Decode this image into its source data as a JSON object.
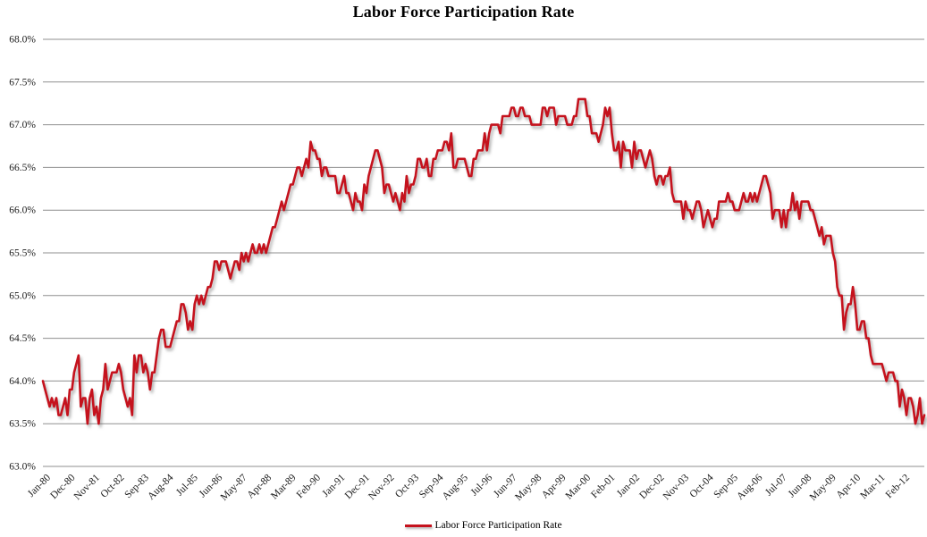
{
  "chart_data": {
    "type": "line",
    "title": "Labor Force Participation Rate",
    "frequency": "monthly",
    "grid": {
      "horizontal": true,
      "vertical": false,
      "color": "#8f8f8f"
    },
    "y": {
      "min": 63.0,
      "max": 68.0,
      "tick_step": 0.5,
      "format": "percent_1dp",
      "tick_labels": [
        "68.0%",
        "67.5%",
        "67.0%",
        "66.5%",
        "66.0%",
        "65.5%",
        "65.0%",
        "64.5%",
        "64.0%",
        "63.5%",
        "63.0%"
      ]
    },
    "x": {
      "tick_interval_months": 11,
      "n_points": 396,
      "tick_labels": [
        "Jan-80",
        "Dec-80",
        "Nov-81",
        "Oct-82",
        "Sep-83",
        "Aug-84",
        "Jul-85",
        "Jun-86",
        "May-87",
        "Apr-88",
        "Mar-89",
        "Feb-90",
        "Jan-91",
        "Dec-91",
        "Nov-92",
        "Oct-93",
        "Sep-94",
        "Aug-95",
        "Jul-96",
        "Jun-97",
        "May-98",
        "Apr-99",
        "Mar-00",
        "Feb-01",
        "Jan-02",
        "Dec-02",
        "Nov-03",
        "Oct-04",
        "Sep-05",
        "Aug-06",
        "Jul-07",
        "Jun-08",
        "May-09",
        "Apr-10",
        "Mar-11",
        "Feb-12"
      ]
    },
    "legend": {
      "position": "bottom"
    },
    "series": [
      {
        "name": "Labor Force Participation Rate",
        "color": "#c5121d",
        "values": [
          64.0,
          63.9,
          63.8,
          63.7,
          63.8,
          63.7,
          63.8,
          63.6,
          63.6,
          63.7,
          63.8,
          63.6,
          63.9,
          63.9,
          64.1,
          64.2,
          64.3,
          63.7,
          63.8,
          63.8,
          63.5,
          63.8,
          63.9,
          63.6,
          63.7,
          63.5,
          63.8,
          63.9,
          64.2,
          63.9,
          64.0,
          64.1,
          64.1,
          64.1,
          64.2,
          64.1,
          63.9,
          63.8,
          63.7,
          63.8,
          63.6,
          64.3,
          64.1,
          64.3,
          64.3,
          64.1,
          64.2,
          64.1,
          63.9,
          64.1,
          64.1,
          64.3,
          64.5,
          64.6,
          64.6,
          64.4,
          64.4,
          64.4,
          64.5,
          64.6,
          64.7,
          64.7,
          64.9,
          64.9,
          64.8,
          64.6,
          64.7,
          64.6,
          64.9,
          65.0,
          64.9,
          65.0,
          64.9,
          65.0,
          65.1,
          65.1,
          65.2,
          65.4,
          65.4,
          65.3,
          65.4,
          65.4,
          65.4,
          65.3,
          65.2,
          65.3,
          65.4,
          65.4,
          65.3,
          65.5,
          65.4,
          65.5,
          65.4,
          65.5,
          65.6,
          65.5,
          65.5,
          65.6,
          65.5,
          65.6,
          65.5,
          65.6,
          65.7,
          65.8,
          65.8,
          65.9,
          66.0,
          66.1,
          66.0,
          66.1,
          66.2,
          66.3,
          66.3,
          66.4,
          66.5,
          66.5,
          66.4,
          66.5,
          66.6,
          66.5,
          66.8,
          66.7,
          66.7,
          66.6,
          66.6,
          66.4,
          66.5,
          66.5,
          66.4,
          66.4,
          66.4,
          66.4,
          66.2,
          66.2,
          66.3,
          66.4,
          66.2,
          66.2,
          66.1,
          66.0,
          66.2,
          66.1,
          66.1,
          66.0,
          66.3,
          66.2,
          66.4,
          66.5,
          66.6,
          66.7,
          66.7,
          66.6,
          66.5,
          66.2,
          66.3,
          66.3,
          66.2,
          66.1,
          66.2,
          66.1,
          66.0,
          66.2,
          66.1,
          66.4,
          66.2,
          66.3,
          66.3,
          66.4,
          66.6,
          66.6,
          66.5,
          66.5,
          66.6,
          66.4,
          66.4,
          66.6,
          66.6,
          66.7,
          66.7,
          66.7,
          66.8,
          66.8,
          66.7,
          66.9,
          66.5,
          66.5,
          66.6,
          66.6,
          66.6,
          66.6,
          66.5,
          66.4,
          66.4,
          66.6,
          66.6,
          66.7,
          66.7,
          66.7,
          66.9,
          66.7,
          66.9,
          67.0,
          67.0,
          67.0,
          67.0,
          66.9,
          67.1,
          67.1,
          67.1,
          67.1,
          67.2,
          67.2,
          67.1,
          67.1,
          67.2,
          67.2,
          67.1,
          67.1,
          67.1,
          67.0,
          67.0,
          67.0,
          67.0,
          67.0,
          67.2,
          67.2,
          67.1,
          67.2,
          67.2,
          67.2,
          67.0,
          67.1,
          67.1,
          67.1,
          67.1,
          67.0,
          67.0,
          67.0,
          67.1,
          67.1,
          67.3,
          67.3,
          67.3,
          67.3,
          67.1,
          67.1,
          66.9,
          66.9,
          66.9,
          66.8,
          66.9,
          67.0,
          67.2,
          67.1,
          67.2,
          66.9,
          66.7,
          66.7,
          66.8,
          66.5,
          66.8,
          66.7,
          66.7,
          66.7,
          66.5,
          66.8,
          66.6,
          66.7,
          66.7,
          66.6,
          66.5,
          66.6,
          66.7,
          66.6,
          66.4,
          66.3,
          66.4,
          66.4,
          66.3,
          66.4,
          66.4,
          66.5,
          66.2,
          66.1,
          66.1,
          66.1,
          66.1,
          65.9,
          66.1,
          66.0,
          66.0,
          65.9,
          66.0,
          66.1,
          66.1,
          66.0,
          65.8,
          65.9,
          66.0,
          65.9,
          65.8,
          65.9,
          65.9,
          66.1,
          66.1,
          66.1,
          66.1,
          66.2,
          66.1,
          66.1,
          66.0,
          66.0,
          66.0,
          66.1,
          66.2,
          66.1,
          66.1,
          66.2,
          66.1,
          66.2,
          66.1,
          66.2,
          66.3,
          66.4,
          66.4,
          66.3,
          66.2,
          65.9,
          66.0,
          66.0,
          66.0,
          65.8,
          66.0,
          65.8,
          66.0,
          66.0,
          66.2,
          66.0,
          66.1,
          65.9,
          66.1,
          66.1,
          66.1,
          66.1,
          66.0,
          66.0,
          65.9,
          65.8,
          65.7,
          65.8,
          65.6,
          65.7,
          65.7,
          65.7,
          65.5,
          65.4,
          65.1,
          65.0,
          65.0,
          64.6,
          64.8,
          64.9,
          64.9,
          65.1,
          64.9,
          64.6,
          64.6,
          64.7,
          64.7,
          64.5,
          64.5,
          64.3,
          64.2,
          64.2,
          64.2,
          64.2,
          64.2,
          64.1,
          64.0,
          64.1,
          64.1,
          64.1,
          64.0,
          64.0,
          63.7,
          63.9,
          63.8,
          63.6,
          63.8,
          63.8,
          63.7,
          63.5,
          63.6,
          63.8,
          63.5,
          63.6
        ]
      }
    ]
  }
}
